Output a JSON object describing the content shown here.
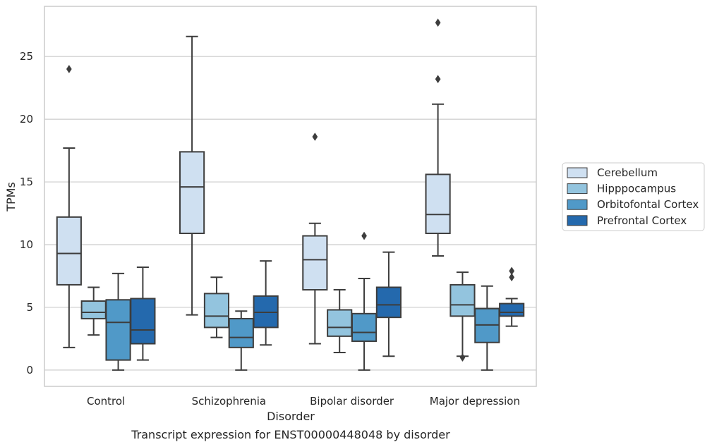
{
  "chart_data": {
    "type": "box",
    "xlabel": "Disorder",
    "ylabel": "TPMs",
    "caption": "Transcript expression for ENST00000448048 by disorder",
    "ylim": [
      -1.3,
      29.0
    ],
    "yticks": [
      0,
      5,
      10,
      15,
      20,
      25
    ],
    "grid": "horizontal",
    "legend_position": "right",
    "categories": [
      "Control",
      "Schizophrenia",
      "Bipolar disorder",
      "Major depression"
    ],
    "series": [
      {
        "name": "Cerebellum",
        "color": "#cfe0f1",
        "boxes": [
          {
            "whisker_low": 1.8,
            "q1": 6.8,
            "median": 9.3,
            "q3": 12.2,
            "whisker_high": 17.7,
            "outliers": [
              24.0
            ]
          },
          {
            "whisker_low": 4.4,
            "q1": 10.9,
            "median": 14.6,
            "q3": 17.4,
            "whisker_high": 26.6,
            "outliers": []
          },
          {
            "whisker_low": 2.1,
            "q1": 6.4,
            "median": 8.8,
            "q3": 10.7,
            "whisker_high": 11.7,
            "outliers": [
              18.6
            ]
          },
          {
            "whisker_low": 9.1,
            "q1": 10.9,
            "median": 12.4,
            "q3": 15.6,
            "whisker_high": 21.2,
            "outliers": [
              23.2,
              27.7
            ]
          }
        ]
      },
      {
        "name": "Hipppocampus",
        "color": "#93c4de",
        "boxes": [
          {
            "whisker_low": 2.8,
            "q1": 4.1,
            "median": 4.6,
            "q3": 5.5,
            "whisker_high": 6.6,
            "outliers": []
          },
          {
            "whisker_low": 2.6,
            "q1": 3.4,
            "median": 4.3,
            "q3": 6.1,
            "whisker_high": 7.4,
            "outliers": []
          },
          {
            "whisker_low": 1.4,
            "q1": 2.7,
            "median": 3.4,
            "q3": 4.8,
            "whisker_high": 6.4,
            "outliers": []
          },
          {
            "whisker_low": 1.1,
            "q1": 4.3,
            "median": 5.2,
            "q3": 6.8,
            "whisker_high": 7.8,
            "outliers": [
              1.0
            ]
          }
        ]
      },
      {
        "name": "Orbitofontal Cortex",
        "color": "#5099c8",
        "boxes": [
          {
            "whisker_low": 0.0,
            "q1": 0.8,
            "median": 3.8,
            "q3": 5.6,
            "whisker_high": 7.7,
            "outliers": []
          },
          {
            "whisker_low": 0.0,
            "q1": 1.8,
            "median": 2.6,
            "q3": 4.1,
            "whisker_high": 4.7,
            "outliers": []
          },
          {
            "whisker_low": 0.0,
            "q1": 2.3,
            "median": 3.0,
            "q3": 4.5,
            "whisker_high": 7.3,
            "outliers": [
              10.7
            ]
          },
          {
            "whisker_low": 0.0,
            "q1": 2.2,
            "median": 3.6,
            "q3": 4.9,
            "whisker_high": 6.7,
            "outliers": []
          }
        ]
      },
      {
        "name": "Prefrontal Cortex",
        "color": "#2469ad",
        "boxes": [
          {
            "whisker_low": 0.8,
            "q1": 2.1,
            "median": 3.2,
            "q3": 5.7,
            "whisker_high": 8.2,
            "outliers": []
          },
          {
            "whisker_low": 2.0,
            "q1": 3.4,
            "median": 4.6,
            "q3": 5.9,
            "whisker_high": 8.7,
            "outliers": []
          },
          {
            "whisker_low": 1.1,
            "q1": 4.2,
            "median": 5.2,
            "q3": 6.6,
            "whisker_high": 9.4,
            "outliers": []
          },
          {
            "whisker_low": 3.5,
            "q1": 4.3,
            "median": 4.6,
            "q3": 5.3,
            "whisker_high": 5.7,
            "outliers": [
              7.4,
              7.9
            ]
          }
        ]
      }
    ]
  },
  "colors": {
    "grid": "#cccccc",
    "frame": "#cccccc",
    "box_edge": "#3d3d3d",
    "text": "#262626"
  }
}
